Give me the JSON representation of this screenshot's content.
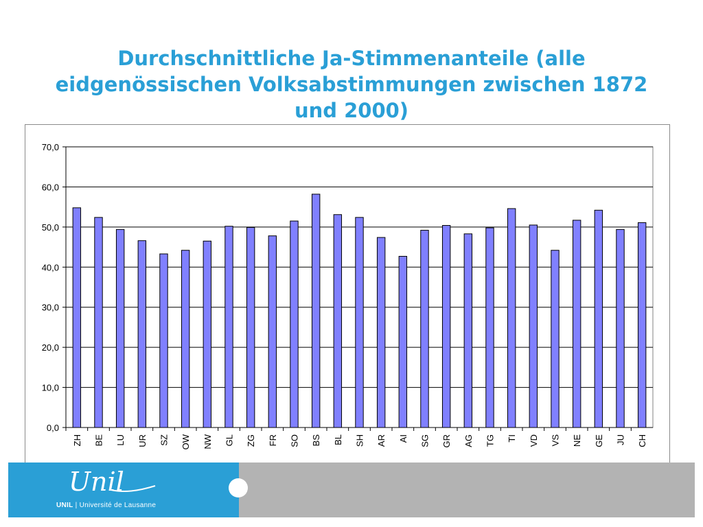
{
  "title": "Durchschnittliche Ja-Stimmenanteile (alle eidgenössischen Volksabstimmungen zwischen 1872 und 2000)",
  "colors": {
    "title": "#2a9fd6",
    "bar_fill": "#8080ff",
    "bar_stroke": "#000000",
    "footer_left": "#2a9fd6",
    "footer_right": "#b3b3b3"
  },
  "chart_data": {
    "type": "bar",
    "categories": [
      "ZH",
      "BE",
      "LU",
      "UR",
      "SZ",
      "OW",
      "NW",
      "GL",
      "ZG",
      "FR",
      "SO",
      "BS",
      "BL",
      "SH",
      "AR",
      "AI",
      "SG",
      "GR",
      "AG",
      "TG",
      "TI",
      "VD",
      "VS",
      "NE",
      "GE",
      "JU",
      "CH"
    ],
    "values": [
      54.8,
      52.4,
      49.4,
      46.6,
      43.3,
      44.2,
      46.5,
      50.2,
      49.9,
      47.8,
      51.5,
      58.2,
      53.1,
      52.4,
      47.4,
      42.7,
      49.2,
      50.4,
      48.3,
      49.8,
      54.6,
      50.5,
      44.2,
      51.7,
      54.2,
      49.4,
      51.1
    ],
    "yticks": [
      "0,0",
      "10,0",
      "20,0",
      "30,0",
      "40,0",
      "50,0",
      "60,0",
      "70,0"
    ],
    "ylim": [
      0,
      70
    ],
    "grid": true,
    "legend": "none",
    "xlabel": "",
    "ylabel": ""
  },
  "footer": {
    "logo_word": "Unil",
    "logo_caption_bold": "UNIL",
    "logo_caption_rest": " | Université de Lausanne"
  }
}
